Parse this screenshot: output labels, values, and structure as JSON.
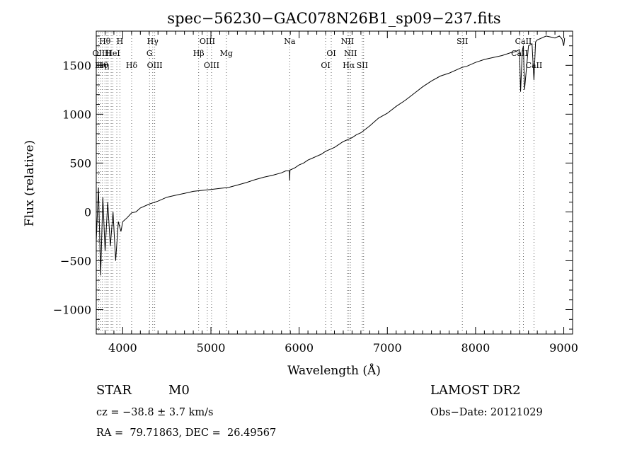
{
  "chart_data": {
    "type": "line",
    "title": "spec−56230−GAC078N26B1_sp09−237.fits",
    "xlabel": "Wavelength (Å)",
    "ylabel": "Flux (relative)",
    "xlim": [
      3700,
      9100
    ],
    "ylim": [
      -1250,
      1850
    ],
    "x_ticks": [
      4000,
      5000,
      6000,
      7000,
      8000,
      9000
    ],
    "x_tick_labels": [
      "4000",
      "5000",
      "6000",
      "7000",
      "8000",
      "9000"
    ],
    "y_ticks": [
      1500,
      1000,
      500,
      0,
      -500,
      -1000
    ],
    "y_tick_labels": [
      "1500",
      "1000",
      "500",
      "0",
      "−500",
      "−1000"
    ],
    "grid": false,
    "series": [
      {
        "x": [
          3700,
          3725,
          3750,
          3775,
          3800,
          3830,
          3860,
          3890,
          3920,
          3950,
          3980,
          4000,
          4050,
          4100,
          4150,
          4200,
          4300,
          4400,
          4500,
          4600,
          4700,
          4800,
          4900,
          5000,
          5100,
          5200,
          5300,
          5400,
          5500,
          5600,
          5700,
          5800,
          5850,
          5890,
          5893,
          5896,
          5900,
          5950,
          6000,
          6050,
          6100,
          6150,
          6200,
          6250,
          6300,
          6350,
          6400,
          6450,
          6500,
          6550,
          6600,
          6650,
          6700,
          6800,
          6900,
          7000,
          7100,
          7200,
          7300,
          7400,
          7500,
          7600,
          7700,
          7800,
          7850,
          7900,
          8000,
          8100,
          8200,
          8300,
          8400,
          8450,
          8498,
          8510,
          8530,
          8542,
          8555,
          8600,
          8640,
          8662,
          8680,
          8700,
          8750,
          8800,
          8850,
          8900,
          8950,
          8980,
          9000,
          9010
        ],
        "y": [
          -300,
          250,
          -650,
          150,
          -400,
          100,
          -350,
          0,
          -500,
          -100,
          -200,
          -100,
          -60,
          -10,
          0,
          40,
          80,
          110,
          150,
          170,
          190,
          210,
          220,
          230,
          240,
          250,
          275,
          300,
          330,
          355,
          375,
          400,
          420,
          420,
          320,
          430,
          430,
          450,
          480,
          500,
          530,
          550,
          570,
          590,
          620,
          640,
          660,
          690,
          720,
          740,
          760,
          790,
          810,
          880,
          960,
          1010,
          1080,
          1140,
          1210,
          1280,
          1340,
          1390,
          1420,
          1460,
          1480,
          1490,
          1530,
          1560,
          1580,
          1600,
          1630,
          1640,
          1660,
          1230,
          1650,
          1700,
          1250,
          1700,
          1720,
          1350,
          1740,
          1760,
          1780,
          1800,
          1790,
          1780,
          1800,
          1770,
          1700,
          1780
        ]
      }
    ],
    "lines": [
      {
        "x": 3727,
        "row1": "",
        "row2": "OII",
        "row3": ""
      },
      {
        "x": 3750,
        "row1": "",
        "row2": "",
        "row3": "Hη"
      },
      {
        "x": 3770,
        "row1": "",
        "row2": "",
        "row3": "Hθ"
      },
      {
        "x": 3798,
        "row1": "Hθ",
        "row2": "",
        "row3": ""
      },
      {
        "x": 3820,
        "row1": "",
        "row2": "",
        "row3": "η"
      },
      {
        "x": 3835,
        "row1": "",
        "row2": "H",
        "row3": ""
      },
      {
        "x": 3869,
        "row1": "",
        "row2": "",
        "row3": ""
      },
      {
        "x": 3889,
        "row1": "",
        "row2": "HeI",
        "row3": ""
      },
      {
        "x": 3933,
        "row1": "",
        "row2": "",
        "row3": ""
      },
      {
        "x": 3968,
        "row1": "H",
        "row2": "",
        "row3": ""
      },
      {
        "x": 4101,
        "row1": "",
        "row2": "",
        "row3": "Hδ"
      },
      {
        "x": 4304,
        "row1": "",
        "row2": "G",
        "row3": ""
      },
      {
        "x": 4340,
        "row1": "Hγ",
        "row2": "",
        "row3": ""
      },
      {
        "x": 4363,
        "row1": "",
        "row2": "",
        "row3": "OIII"
      },
      {
        "x": 4861,
        "row1": "",
        "row2": "Hβ",
        "row3": ""
      },
      {
        "x": 4959,
        "row1": "OIII",
        "row2": "",
        "row3": ""
      },
      {
        "x": 5007,
        "row1": "",
        "row2": "",
        "row3": "OIII"
      },
      {
        "x": 5175,
        "row1": "",
        "row2": "Mg",
        "row3": ""
      },
      {
        "x": 5893,
        "row1": "Na",
        "row2": "",
        "row3": ""
      },
      {
        "x": 6300,
        "row1": "",
        "row2": "",
        "row3": "OI"
      },
      {
        "x": 6364,
        "row1": "",
        "row2": "OI",
        "row3": ""
      },
      {
        "x": 6548,
        "row1": "NII",
        "row2": "",
        "row3": ""
      },
      {
        "x": 6563,
        "row1": "",
        "row2": "",
        "row3": "Hα"
      },
      {
        "x": 6583,
        "row1": "",
        "row2": "NII",
        "row3": ""
      },
      {
        "x": 6716,
        "row1": "",
        "row2": "",
        "row3": "SII"
      },
      {
        "x": 6731,
        "row1": "",
        "row2": "",
        "row3": ""
      },
      {
        "x": 7850,
        "row1": "SII",
        "row2": "",
        "row3": ""
      },
      {
        "x": 8498,
        "row1": "",
        "row2": "CaII",
        "row3": ""
      },
      {
        "x": 8542,
        "row1": "CaII",
        "row2": "",
        "row3": ""
      },
      {
        "x": 8662,
        "row1": "",
        "row2": "",
        "row3": "CaII"
      }
    ]
  },
  "footer": {
    "class": "STAR",
    "subclass": "M0",
    "survey": "LAMOST DR2",
    "cz": "cz = −38.8 ± 3.7 km/s",
    "obs_date": "Obs−Date: 20121029",
    "coords": "RA =  79.71863, DEC =  26.49567"
  }
}
